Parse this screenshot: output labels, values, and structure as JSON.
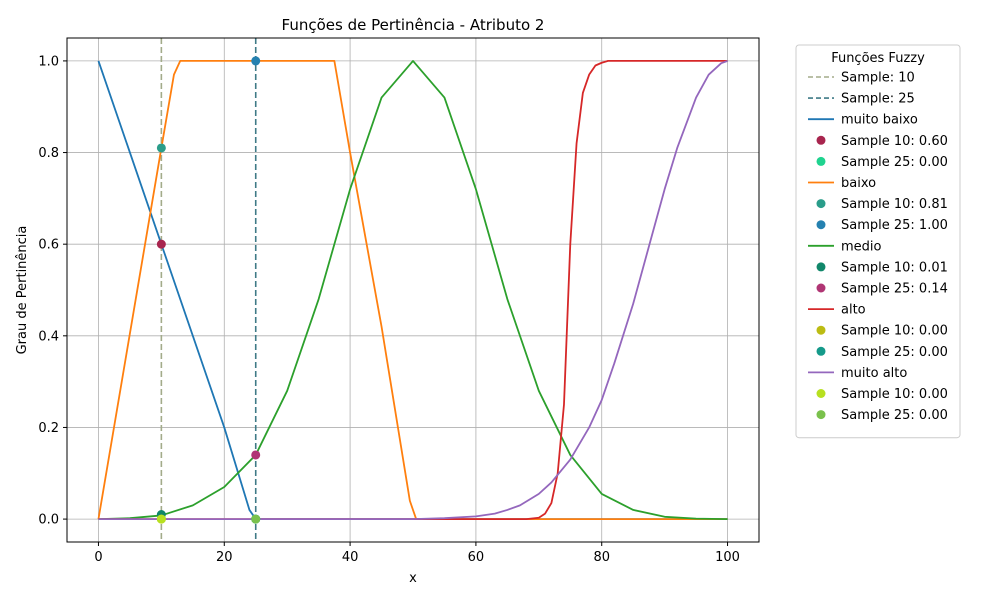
{
  "chart_data": {
    "type": "line",
    "title": "Funções de Pertinência - Atributo 2",
    "xlabel": "x",
    "ylabel": "Grau de Pertinência",
    "xlim": [
      -5,
      105
    ],
    "ylim": [
      -0.05,
      1.05
    ],
    "xticks": [
      0,
      20,
      40,
      60,
      80,
      100
    ],
    "yticks": [
      0.0,
      0.2,
      0.4,
      0.6,
      0.8,
      1.0
    ],
    "xtick_labels": [
      "0",
      "20",
      "40",
      "60",
      "80",
      "100"
    ],
    "ytick_labels": [
      "0.0",
      "0.2",
      "0.4",
      "0.6",
      "0.8",
      "1.0"
    ],
    "grid": true,
    "legend_title": "Funções Fuzzy",
    "legend_placement": "outside-right",
    "vlines": [
      {
        "x": 10,
        "label": "Sample: 10",
        "color": "#a3ab8a"
      },
      {
        "x": 25,
        "label": "Sample: 25",
        "color": "#3f7a86"
      }
    ],
    "series": [
      {
        "name": "muito baixo",
        "color": "#1f77b4",
        "x": [
          0,
          10,
          20,
          24,
          25,
          50,
          75,
          100
        ],
        "y": [
          1.0,
          0.6,
          0.2,
          0.02,
          0.0,
          0.0,
          0.0,
          0.0
        ],
        "samples": [
          {
            "x": 10,
            "y": 0.6,
            "label": "Sample 10: 0.60",
            "color": "#a8254e"
          },
          {
            "x": 25,
            "y": 0.0,
            "label": "Sample 25: 0.00",
            "color": "#1fd38f"
          }
        ]
      },
      {
        "name": "baixo",
        "color": "#ff7f0e",
        "x": [
          0,
          10,
          12,
          13,
          15,
          20,
          30,
          37.5,
          40,
          45,
          49.5,
          50.5,
          60,
          80,
          100
        ],
        "y": [
          0.0,
          0.81,
          0.97,
          1.0,
          1.0,
          1.0,
          1.0,
          1.0,
          0.8,
          0.42,
          0.04,
          0.0,
          0.0,
          0.0,
          0.0
        ],
        "samples": [
          {
            "x": 10,
            "y": 0.81,
            "label": "Sample 10: 0.81",
            "color": "#2a9d8a"
          },
          {
            "x": 25,
            "y": 1.0,
            "label": "Sample 25: 1.00",
            "color": "#2581b0"
          }
        ]
      },
      {
        "name": "medio",
        "color": "#2ca02c",
        "x": [
          0,
          5,
          10,
          15,
          20,
          25,
          30,
          35,
          40,
          45,
          50,
          55,
          60,
          65,
          70,
          75,
          80,
          85,
          90,
          95,
          100
        ],
        "y": [
          0.0,
          0.002,
          0.008,
          0.03,
          0.07,
          0.14,
          0.28,
          0.48,
          0.72,
          0.92,
          1.0,
          0.92,
          0.72,
          0.48,
          0.28,
          0.14,
          0.055,
          0.02,
          0.005,
          0.001,
          0.0
        ],
        "samples": [
          {
            "x": 10,
            "y": 0.01,
            "label": "Sample 10: 0.01",
            "color": "#11876a"
          },
          {
            "x": 25,
            "y": 0.14,
            "label": "Sample 25: 0.14",
            "color": "#b03574"
          }
        ]
      },
      {
        "name": "alto",
        "color": "#d62728",
        "x": [
          0,
          20,
          40,
          60,
          68,
          70,
          71,
          72,
          73,
          74,
          75,
          76,
          77,
          78,
          79,
          80,
          81,
          82,
          85,
          90,
          100
        ],
        "y": [
          0.0,
          0.0,
          0.0,
          0.0,
          0.0,
          0.003,
          0.012,
          0.035,
          0.1,
          0.25,
          0.6,
          0.82,
          0.93,
          0.97,
          0.99,
          0.996,
          1.0,
          1.0,
          1.0,
          1.0,
          1.0
        ],
        "samples": [
          {
            "x": 10,
            "y": 0.0,
            "label": "Sample 10: 0.00",
            "color": "#bcbc13"
          },
          {
            "x": 25,
            "y": 0.0,
            "label": "Sample 25: 0.00",
            "color": "#159a8a"
          }
        ]
      },
      {
        "name": "muito alto",
        "color": "#9467bd",
        "x": [
          0,
          20,
          40,
          50,
          55,
          60,
          63,
          65,
          67,
          70,
          72,
          75,
          78,
          80,
          82,
          85,
          88,
          90,
          92,
          95,
          97,
          99,
          100
        ],
        "y": [
          0.0,
          0.0,
          0.0,
          0.0,
          0.002,
          0.006,
          0.012,
          0.02,
          0.03,
          0.055,
          0.08,
          0.13,
          0.2,
          0.26,
          0.34,
          0.47,
          0.62,
          0.72,
          0.81,
          0.92,
          0.97,
          0.995,
          1.0
        ],
        "samples": [
          {
            "x": 10,
            "y": 0.0,
            "label": "Sample 10: 0.00",
            "color": "#b7e020"
          },
          {
            "x": 25,
            "y": 0.0,
            "label": "Sample 25: 0.00",
            "color": "#7ac14c"
          }
        ]
      }
    ]
  }
}
